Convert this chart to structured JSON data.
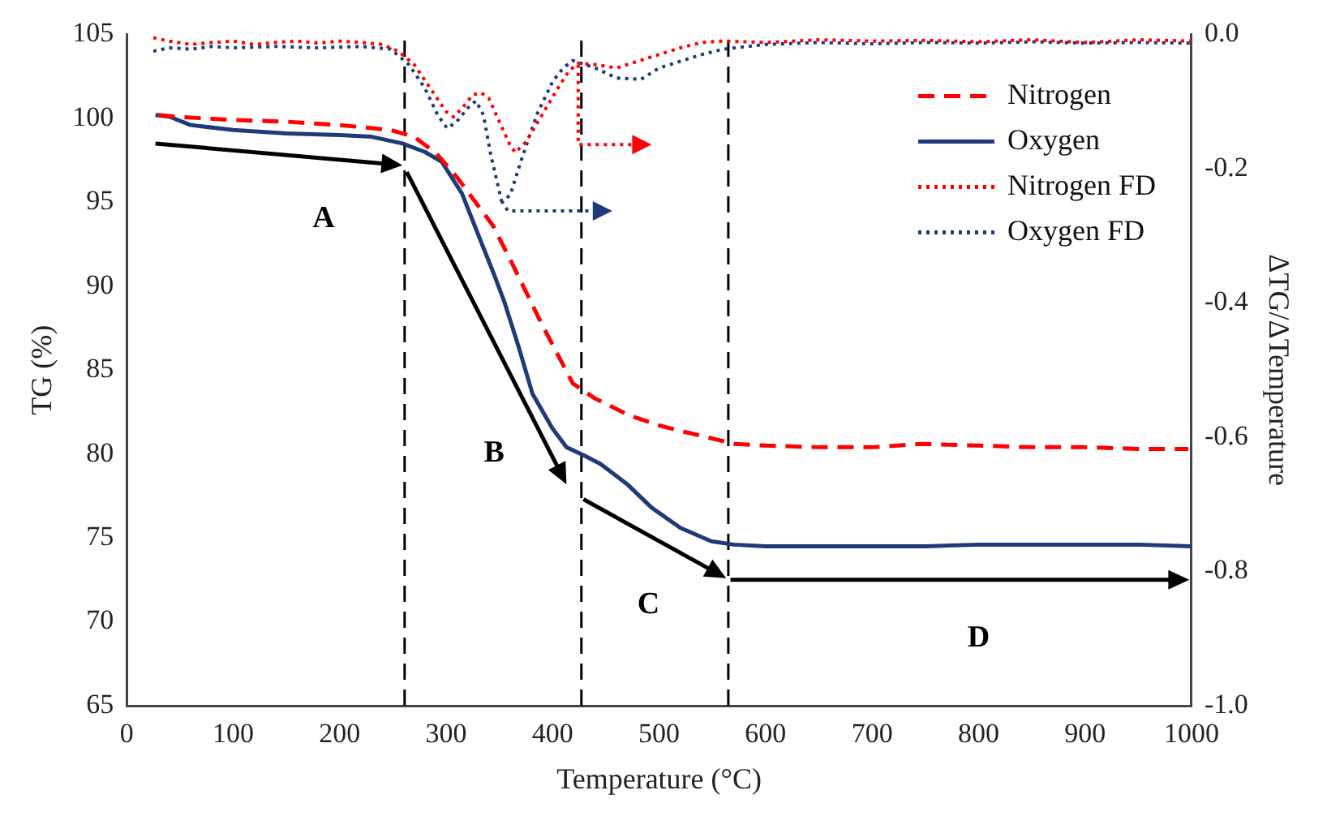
{
  "chart_data": {
    "type": "line",
    "xlabel": "Temperature (°C)",
    "ylabel": "TG (%)",
    "y2label": "ΔTG/ΔTemperature",
    "xlim": [
      0,
      1000
    ],
    "xticks": [
      0,
      100,
      200,
      300,
      400,
      500,
      600,
      700,
      800,
      900,
      1000
    ],
    "ylim": [
      65,
      105
    ],
    "yticks": [
      65,
      70,
      75,
      80,
      85,
      90,
      95,
      100,
      105
    ],
    "y2lim": [
      -1,
      0
    ],
    "y2ticks": [
      {
        "value": -1,
        "label": "-1.0"
      },
      -0.8,
      -0.6,
      -0.4,
      -0.2,
      {
        "value": 0,
        "label": "0.0"
      }
    ],
    "grid": false,
    "legend": "top right",
    "marker": "none",
    "series": [
      {
        "name": "Nitrogen",
        "color": "#ff0000",
        "line_style": "dashed",
        "x": [
          30,
          45,
          100,
          150,
          200,
          248,
          270,
          291,
          310,
          330,
          344,
          360,
          387,
          400,
          419,
          440,
          472,
          500,
          525,
          571,
          600,
          650,
          700,
          747,
          800,
          850,
          900,
          950,
          997
        ],
        "values": [
          100.2,
          100.1,
          99.9,
          99.8,
          99.6,
          99.3,
          98.9,
          97.9,
          96.5,
          94.8,
          93.6,
          91.6,
          88.1,
          86.5,
          84.2,
          83.3,
          82.3,
          81.7,
          81.3,
          80.6,
          80.5,
          80.4,
          80.4,
          80.6,
          80.5,
          80.4,
          80.4,
          80.3,
          80.3
        ]
      },
      {
        "name": "Oxygen",
        "color": "#1f3a78",
        "line_style": "solid",
        "x": [
          27,
          40,
          60,
          100,
          150,
          200,
          230,
          259,
          280,
          296,
          315,
          333,
          345,
          355,
          368,
          381,
          400,
          413,
          430,
          445,
          470,
          493,
          520,
          549,
          570,
          600,
          650,
          700,
          750,
          800,
          850,
          900,
          950,
          1000
        ],
        "values": [
          100.2,
          100.1,
          99.6,
          99.3,
          99.1,
          99.0,
          98.9,
          98.5,
          98.0,
          97.4,
          95.5,
          92.6,
          90.7,
          89.0,
          86.4,
          83.6,
          81.5,
          80.4,
          79.9,
          79.4,
          78.2,
          76.8,
          75.6,
          74.8,
          74.6,
          74.5,
          74.5,
          74.5,
          74.5,
          74.6,
          74.6,
          74.6,
          74.6,
          74.5
        ]
      },
      {
        "name": "Nitrogen FD",
        "color": "#ff0000",
        "line_style": "dotted",
        "axis": "y2",
        "x": [
          25,
          40,
          60,
          80,
          100,
          120,
          140,
          160,
          180,
          200,
          220,
          240,
          255,
          270,
          285,
          300,
          307,
          315,
          325,
          333,
          340,
          350,
          360,
          365,
          375,
          390,
          405,
          415,
          424,
          440,
          460,
          480,
          500,
          520,
          540,
          560,
          600,
          650,
          700,
          750,
          800,
          850,
          900,
          950,
          1000
        ],
        "values": [
          -0.005,
          -0.01,
          -0.015,
          -0.012,
          -0.01,
          -0.015,
          -0.012,
          -0.01,
          -0.013,
          -0.01,
          -0.012,
          -0.015,
          -0.025,
          -0.045,
          -0.08,
          -0.115,
          -0.123,
          -0.11,
          -0.09,
          -0.087,
          -0.095,
          -0.13,
          -0.165,
          -0.176,
          -0.16,
          -0.12,
          -0.08,
          -0.055,
          -0.043,
          -0.045,
          -0.05,
          -0.04,
          -0.03,
          -0.02,
          -0.012,
          -0.01,
          -0.012,
          -0.008,
          -0.01,
          -0.009,
          -0.011,
          -0.008,
          -0.012,
          -0.008,
          -0.01
        ]
      },
      {
        "name": "Oxygen FD",
        "color": "#1f3a78",
        "line_style": "dotted",
        "axis": "y2",
        "x": [
          25,
          40,
          60,
          80,
          100,
          140,
          180,
          220,
          248,
          265,
          280,
          292,
          301,
          310,
          320,
          328,
          335,
          342,
          352,
          360,
          370,
          385,
          400,
          410,
          419,
          440,
          460,
          483,
          500,
          520,
          540,
          560,
          600,
          650,
          700,
          750,
          800,
          850,
          900,
          950,
          1000
        ],
        "values": [
          -0.025,
          -0.02,
          -0.022,
          -0.018,
          -0.02,
          -0.018,
          -0.02,
          -0.018,
          -0.022,
          -0.045,
          -0.08,
          -0.12,
          -0.14,
          -0.13,
          -0.11,
          -0.099,
          -0.12,
          -0.18,
          -0.248,
          -0.24,
          -0.19,
          -0.12,
          -0.07,
          -0.05,
          -0.039,
          -0.05,
          -0.065,
          -0.067,
          -0.05,
          -0.04,
          -0.03,
          -0.022,
          -0.015,
          -0.012,
          -0.014,
          -0.012,
          -0.013,
          -0.011,
          -0.013,
          -0.012,
          -0.013
        ]
      }
    ],
    "ref_lines": [
      {
        "axis": "x",
        "value": 261,
        "color": "#000000",
        "line_style": "dashed"
      },
      {
        "axis": "x",
        "value": 427,
        "color": "#000000",
        "line_style": "dashed"
      },
      {
        "axis": "x",
        "value": 565,
        "color": "#000000",
        "line_style": "dashed"
      }
    ],
    "annotations": [
      "A",
      "B",
      "C",
      "D"
    ]
  }
}
